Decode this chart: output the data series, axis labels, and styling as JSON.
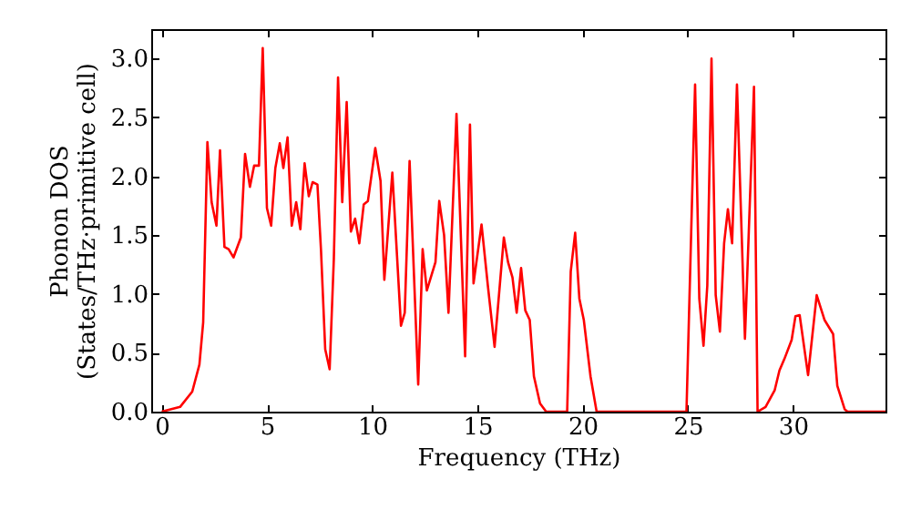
{
  "chart_data": {
    "type": "line",
    "xlabel": "Frequency (THz)",
    "ylabel": "Phonon DOS\n(States/THz·primitive cell)",
    "xlim": [
      -0.5,
      34.4
    ],
    "ylim": [
      0,
      3.25
    ],
    "xticks": [
      0,
      5,
      10,
      15,
      20,
      25,
      30
    ],
    "yticks": [
      {
        "value": 0,
        "label": "0.0"
      },
      {
        "value": 0.5,
        "label": "0.5"
      },
      {
        "value": 1,
        "label": "1.0"
      },
      {
        "value": 1.5,
        "label": "1.5"
      },
      {
        "value": 2,
        "label": "2.0"
      },
      {
        "value": 2.5,
        "label": "2.5"
      },
      {
        "value": 3,
        "label": "3.0"
      }
    ],
    "grid": false,
    "line_style": "solid",
    "series": [
      {
        "color": "#ff0000",
        "x": [
          0,
          0.87,
          1.45,
          1.79,
          1.97,
          2.17,
          2.37,
          2.6,
          2.77,
          2.98,
          3.18,
          3.41,
          3.76,
          3.96,
          4.19,
          4.39,
          4.62,
          4.8,
          5.0,
          5.2,
          5.4,
          5.61,
          5.78,
          5.98,
          6.18,
          6.39,
          6.59,
          6.79,
          6.99,
          7.17,
          7.4,
          7.57,
          7.77,
          7.98,
          8.18,
          8.38,
          8.58,
          8.79,
          8.99,
          9.19,
          9.39,
          9.6,
          9.8,
          10.15,
          10.4,
          10.58,
          10.96,
          11.37,
          11.55,
          11.78,
          12.19,
          12.4,
          12.6,
          13.01,
          13.19,
          13.42,
          13.63,
          14.01,
          14.42,
          14.65,
          14.82,
          15.2,
          15.5,
          15.82,
          16.26,
          16.46,
          16.67,
          16.87,
          17.08,
          17.28,
          17.49,
          17.69,
          17.98,
          18.27,
          19.27,
          19.44,
          19.65,
          19.85,
          20.06,
          20.38,
          20.67,
          24.94,
          25.35,
          25.55,
          25.75,
          25.93,
          26.13,
          26.33,
          26.53,
          26.73,
          26.91,
          27.11,
          27.34,
          27.72,
          28.15,
          28.32,
          28.7,
          29.13,
          29.36,
          29.6,
          29.94,
          30.12,
          30.32,
          30.72,
          31.13,
          31.5,
          31.91,
          32.11,
          32.46,
          32.6,
          34.4
        ],
        "values": [
          0,
          0.04,
          0.17,
          0.4,
          0.76,
          2.29,
          1.78,
          1.58,
          2.22,
          1.4,
          1.38,
          1.31,
          1.48,
          2.19,
          1.91,
          2.09,
          2.09,
          3.09,
          1.73,
          1.58,
          2.07,
          2.28,
          2.07,
          2.33,
          1.58,
          1.78,
          1.55,
          2.11,
          1.83,
          1.95,
          1.93,
          1.37,
          0.53,
          0.36,
          1.3,
          2.84,
          1.78,
          2.63,
          1.53,
          1.64,
          1.43,
          1.76,
          1.79,
          2.24,
          1.96,
          1.12,
          2.03,
          0.73,
          0.84,
          2.13,
          0.23,
          1.38,
          1.03,
          1.27,
          1.79,
          1.5,
          0.84,
          2.53,
          0.47,
          2.44,
          1.09,
          1.59,
          1.07,
          0.55,
          1.48,
          1.27,
          1.14,
          0.84,
          1.22,
          0.86,
          0.78,
          0.3,
          0.07,
          0,
          0,
          1.19,
          1.52,
          0.96,
          0.78,
          0.3,
          0,
          0,
          2.78,
          0.96,
          0.56,
          1.07,
          3.0,
          0.99,
          0.68,
          1.43,
          1.72,
          1.43,
          2.78,
          0.62,
          2.76,
          0,
          0.04,
          0.18,
          0.35,
          0.45,
          0.61,
          0.81,
          0.82,
          0.31,
          0.99,
          0.78,
          0.66,
          0.22,
          0.02,
          0,
          0
        ]
      }
    ]
  }
}
